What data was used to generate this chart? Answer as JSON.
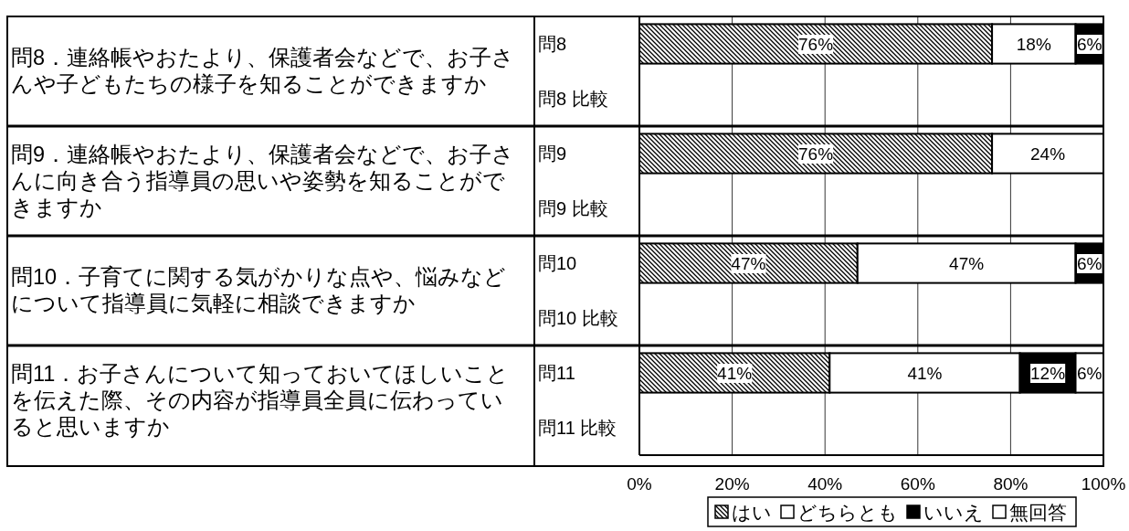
{
  "chart_data": {
    "type": "bar",
    "orientation": "horizontal",
    "stacked": true,
    "grid": "x",
    "legend": "bottom",
    "categories": [
      "問8",
      "問8 比較",
      "問9",
      "問9 比較",
      "問10",
      "問10 比較",
      "問11",
      "問11 比較"
    ],
    "series": [
      {
        "name": "はい",
        "color": "#000000",
        "values": [
          76,
          null,
          76,
          null,
          47,
          null,
          41,
          null
        ],
        "value_labels": [
          "76%",
          null,
          "76%",
          null,
          "47%",
          null,
          "41%",
          null
        ]
      },
      {
        "name": "どちらとも",
        "color": "#ffffff",
        "values": [
          18,
          null,
          24,
          null,
          47,
          null,
          41,
          null
        ],
        "value_labels": [
          "18%",
          null,
          "24%",
          null,
          "47%",
          null,
          "41%",
          null
        ]
      },
      {
        "name": "いいえ",
        "color": "#000000",
        "values": [
          6,
          null,
          null,
          null,
          6,
          null,
          12,
          null
        ],
        "value_labels": [
          "6%",
          null,
          null,
          null,
          "6%",
          null,
          "12%",
          null
        ]
      },
      {
        "name": "無回答",
        "color": "#ffffff",
        "values": [
          null,
          null,
          null,
          null,
          null,
          null,
          6,
          null
        ],
        "value_labels": [
          null,
          null,
          null,
          null,
          null,
          null,
          "6%",
          null
        ]
      }
    ],
    "xlim": [
      0,
      100
    ],
    "xticks": [
      {
        "value": 0,
        "label": "0%"
      },
      {
        "value": 20,
        "label": "20%"
      },
      {
        "value": 40,
        "label": "40%"
      },
      {
        "value": 60,
        "label": "60%"
      },
      {
        "value": 80,
        "label": "80%"
      },
      {
        "value": 100,
        "label": "100%"
      }
    ],
    "annotations": [
      "問8．連絡帳やおたより、保護者会などで、お子さんや子どもたちの様子を知ることができますか",
      "問9．連絡帳やおたより、保護者会などで、お子さんに向き合う指導員の思いや姿勢を知ることができますか",
      "問10．子育てに関する気がかりな点や、悩みなどについて指導員に気軽に相談できますか",
      "問11．お子さんについて知っておいてほしいことを伝えた際、その内容が指導員全員に伝わっていると思いますか"
    ]
  }
}
